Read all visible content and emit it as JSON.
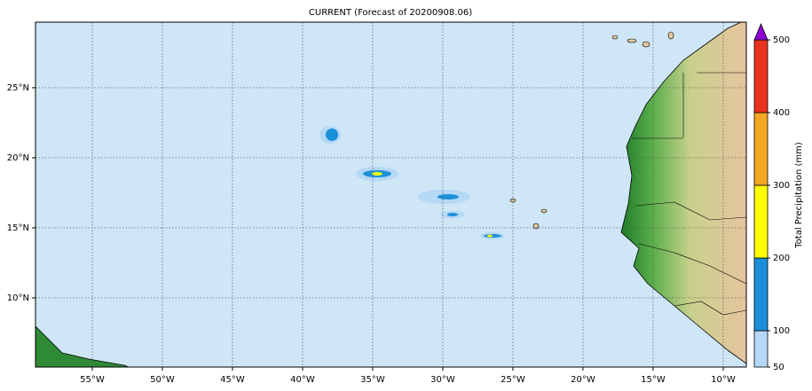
{
  "map": {
    "title": "CURRENT (Forecast of 20200908.06)",
    "xlim": [
      -59.05,
      -8.35
    ],
    "ylim": [
      5.06,
      29.68
    ],
    "xticks": [
      {
        "value": -55,
        "label": "55°W"
      },
      {
        "value": -50,
        "label": "50°W"
      },
      {
        "value": -45,
        "label": "45°W"
      },
      {
        "value": -40,
        "label": "40°W"
      },
      {
        "value": -35,
        "label": "35°W"
      },
      {
        "value": -30,
        "label": "30°W"
      },
      {
        "value": -25,
        "label": "25°W"
      },
      {
        "value": -20,
        "label": "20°W"
      },
      {
        "value": -15,
        "label": "15°W"
      },
      {
        "value": -10,
        "label": "10°W"
      }
    ],
    "yticks": [
      {
        "value": 10,
        "label": "10°N"
      },
      {
        "value": 15,
        "label": "15°N"
      },
      {
        "value": 20,
        "label": "20°N"
      },
      {
        "value": 25,
        "label": "25°N"
      }
    ],
    "grid": true,
    "colorbar": {
      "label": "Total Precipitation (mm)",
      "levels": [
        50,
        100,
        200,
        300,
        400,
        500
      ],
      "colors": [
        "#b4d8f6",
        "#1b8fd8",
        "#ffff00",
        "#f5a623",
        "#e8321e"
      ],
      "extend_color": "#8b00d4"
    }
  }
}
